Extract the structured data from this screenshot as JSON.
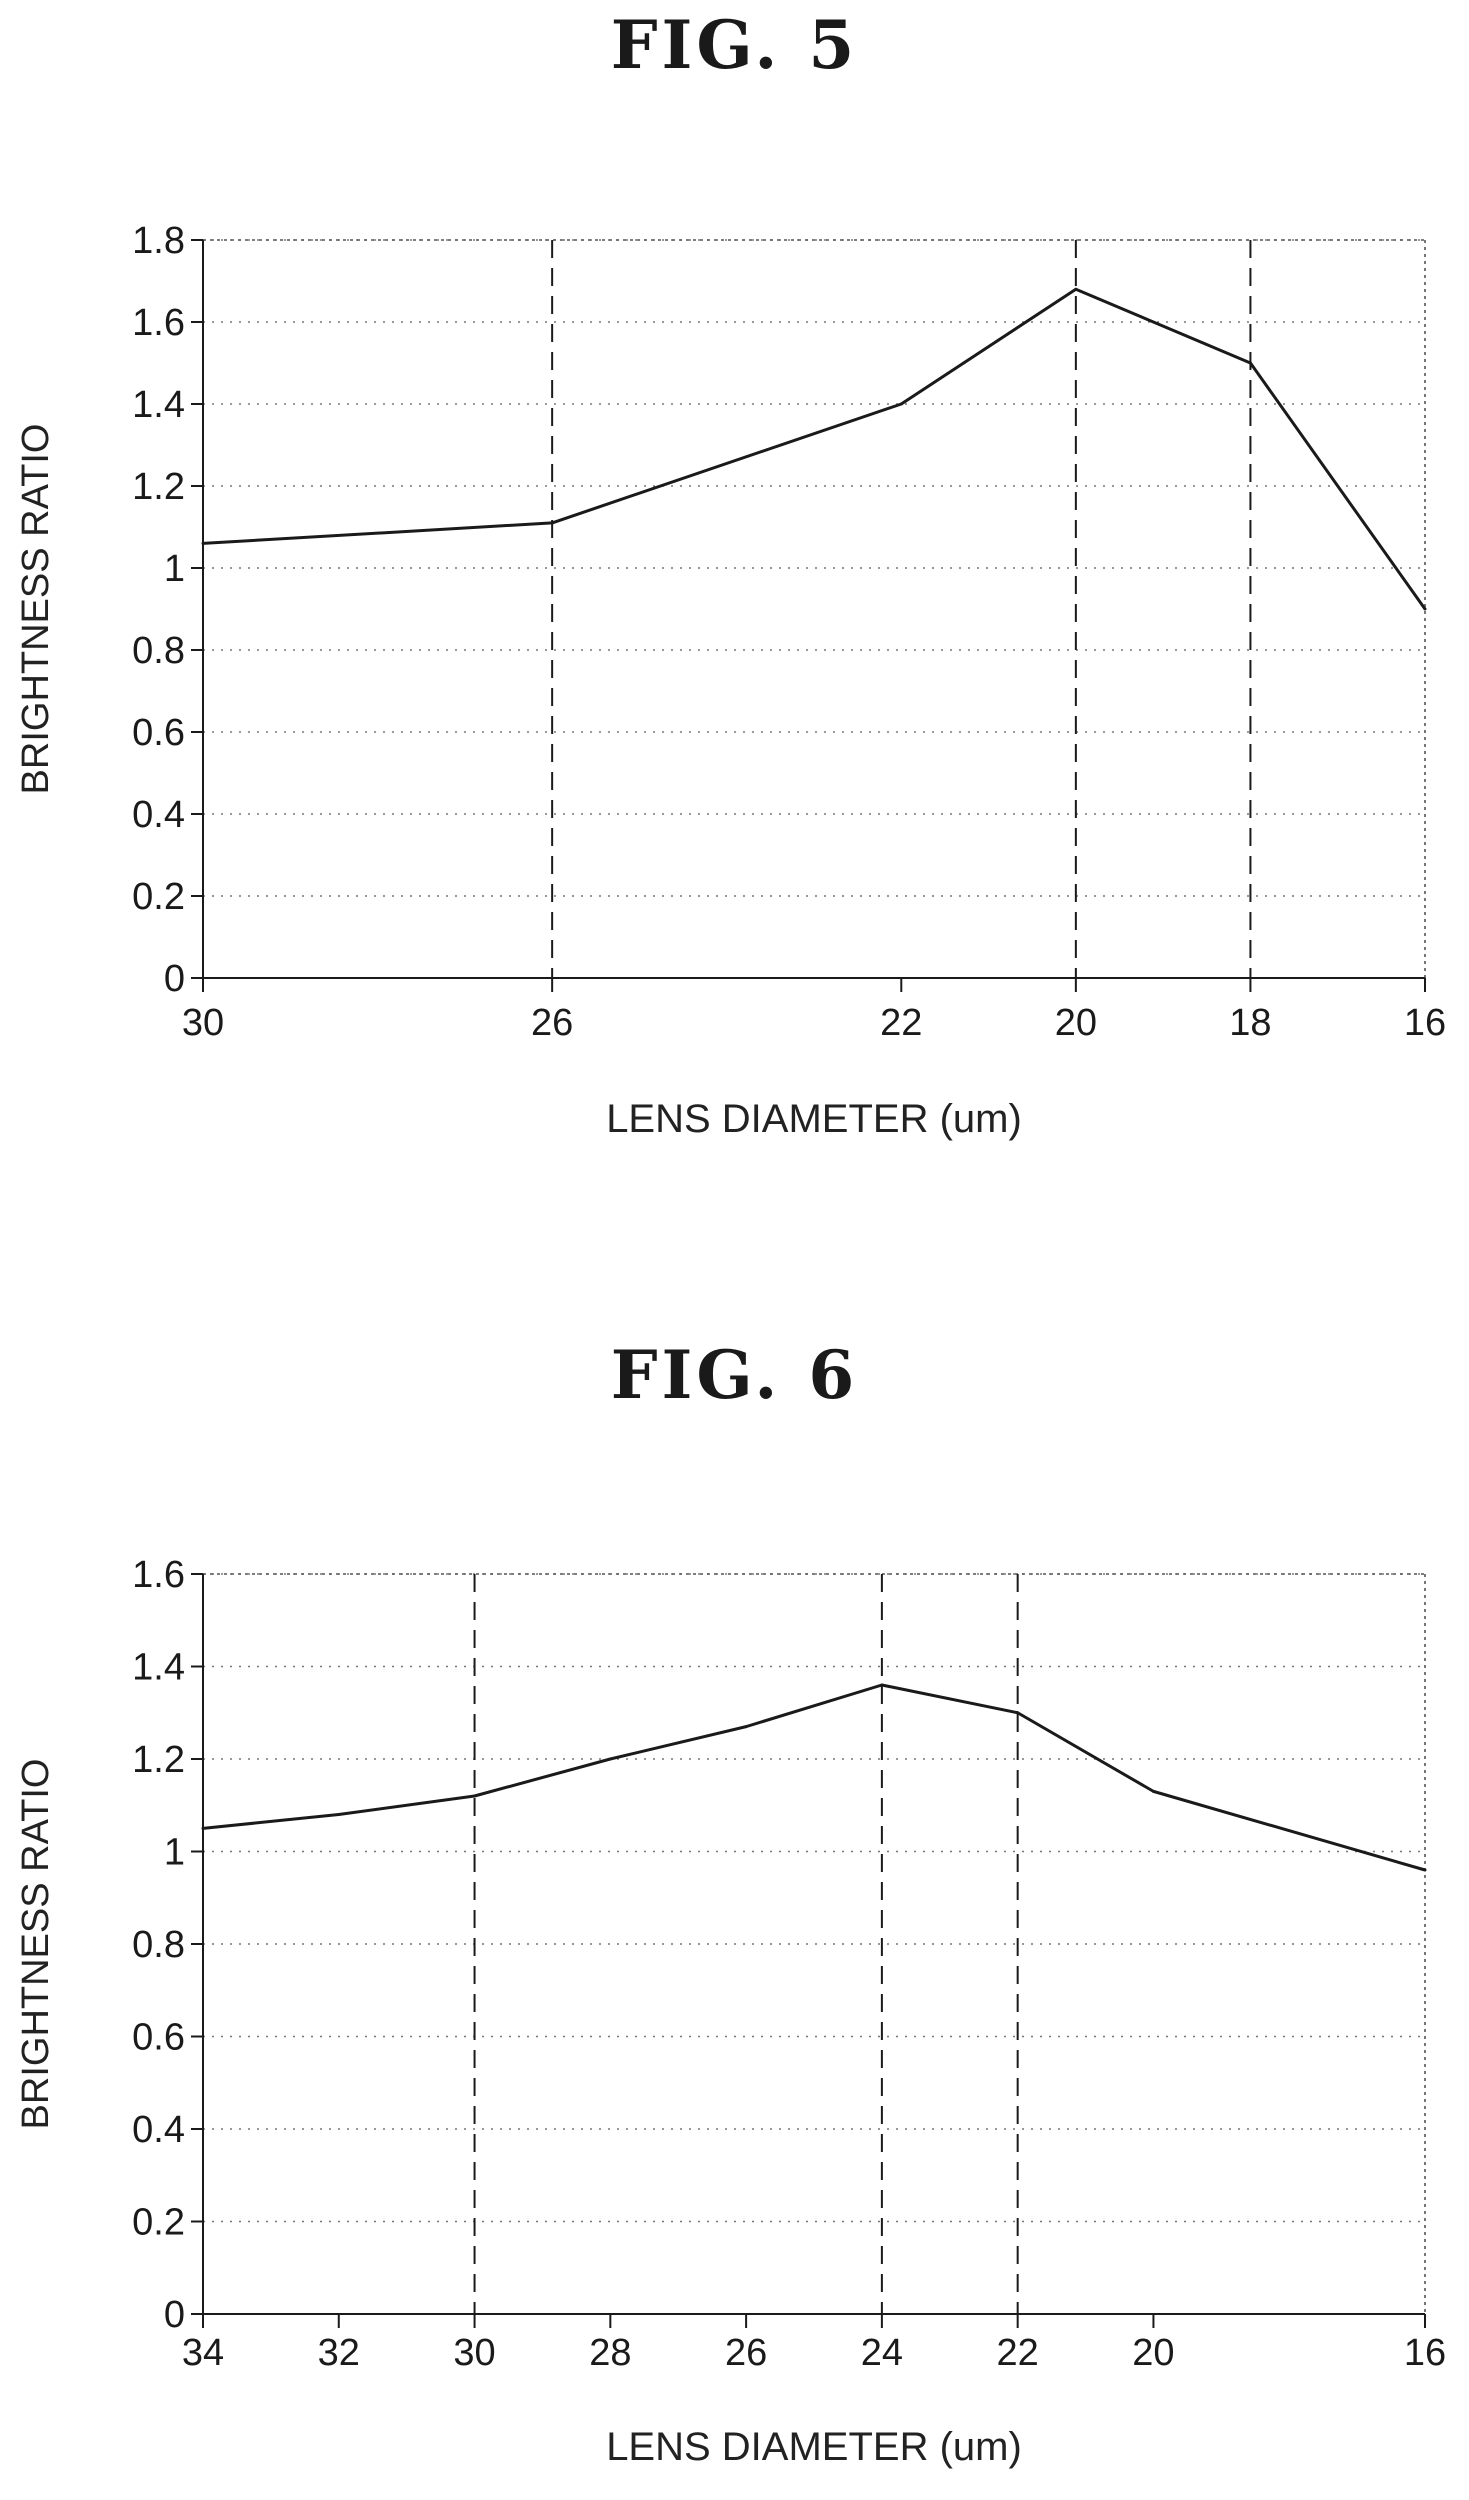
{
  "figures": [
    {
      "title": "FIG.  5",
      "chart_data": {
        "type": "line",
        "x": [
          30,
          26,
          22,
          20,
          18,
          16
        ],
        "x_tick_labels": [
          "30",
          "26",
          "22",
          "20",
          "18",
          "16"
        ],
        "xlabel": "LENS DIAMETER (um)",
        "ylabel": "BRIGHTNESS RATIO",
        "ylim": [
          0,
          1.8
        ],
        "y_ticks": [
          0,
          0.2,
          0.4,
          0.6,
          0.8,
          1,
          1.2,
          1.4,
          1.6,
          1.8
        ],
        "y_tick_labels": [
          "0",
          "0.2",
          "0.4",
          "0.6",
          "0.8",
          "1",
          "1.2",
          "1.4",
          "1.6",
          "1.8"
        ],
        "series": [
          {
            "values": [
              1.06,
              1.11,
              1.4,
              1.68,
              1.5,
              0.9
            ]
          }
        ],
        "dashed_verticals": [
          26,
          20,
          18
        ],
        "grid": "horizontal dotted",
        "line_color": "#1a1a1a"
      }
    },
    {
      "title": "FIG.  6",
      "chart_data": {
        "type": "line",
        "x": [
          34,
          32,
          30,
          28,
          26,
          24,
          22,
          20,
          16
        ],
        "x_tick_labels": [
          "34",
          "32",
          "30",
          "28",
          "26",
          "24",
          "22",
          "20",
          "16"
        ],
        "xlabel": "LENS DIAMETER (um)",
        "ylabel": "BRIGHTNESS RATIO",
        "ylim": [
          0,
          1.6
        ],
        "y_ticks": [
          0,
          0.2,
          0.4,
          0.6,
          0.8,
          1,
          1.2,
          1.4,
          1.6
        ],
        "y_tick_labels": [
          "0",
          "0.2",
          "0.4",
          "0.6",
          "0.8",
          "1",
          "1.2",
          "1.4",
          "1.6"
        ],
        "series": [
          {
            "values": [
              1.05,
              1.08,
              1.12,
              1.2,
              1.27,
              1.36,
              1.3,
              1.13,
              0.96
            ]
          }
        ],
        "dashed_verticals": [
          30,
          24,
          22
        ],
        "grid": "horizontal dotted",
        "line_color": "#1a1a1a"
      }
    }
  ]
}
